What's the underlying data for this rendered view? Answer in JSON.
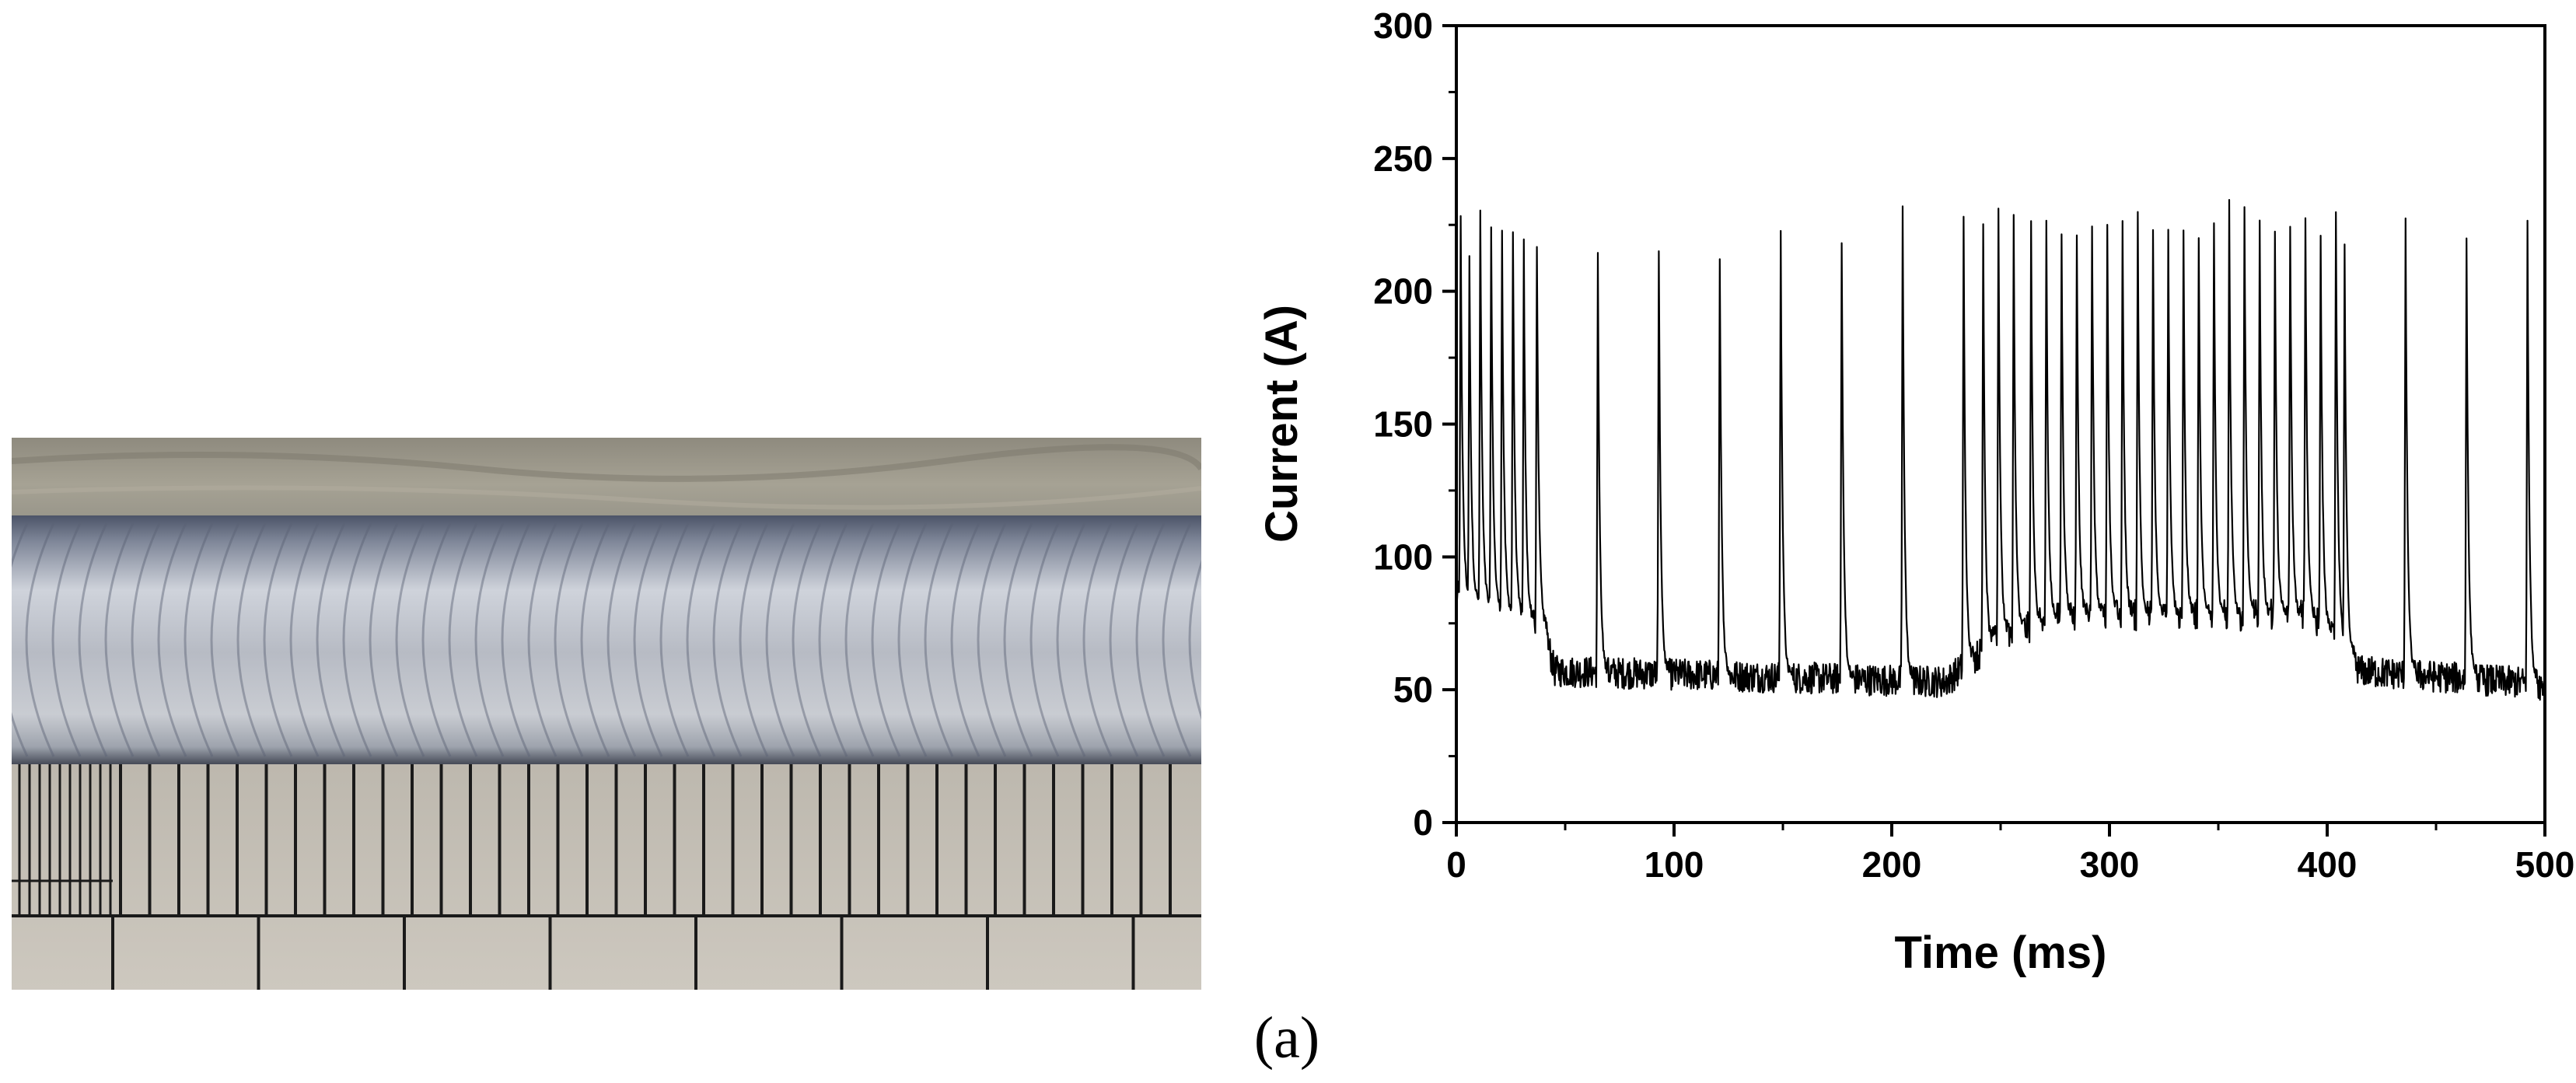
{
  "figure": {
    "panel_label": "(a)",
    "photo_subject": "weld-bead-photo-with-ruler"
  },
  "chart_data": {
    "type": "line",
    "title": "",
    "xlabel": "Time  (ms)",
    "ylabel": "Current  (A)",
    "xlim": [
      0,
      500
    ],
    "ylim": [
      0,
      300
    ],
    "x_ticks": [
      0,
      100,
      200,
      300,
      400,
      500
    ],
    "y_ticks": [
      0,
      50,
      100,
      150,
      200,
      250,
      300
    ],
    "x_tick_labels": [
      "0",
      "100",
      "200",
      "300",
      "400",
      "500"
    ],
    "y_tick_labels": [
      "0",
      "50",
      "100",
      "150",
      "200",
      "250",
      "300"
    ],
    "grid": false,
    "legend": "none",
    "line_color": "#000000",
    "series": [
      {
        "peaks": [
          {
            "t": 2,
            "i": 227
          },
          {
            "t": 6,
            "i": 212
          },
          {
            "t": 11,
            "i": 230
          },
          {
            "t": 16,
            "i": 224
          },
          {
            "t": 21,
            "i": 222
          },
          {
            "t": 26,
            "i": 223
          },
          {
            "t": 31,
            "i": 218
          },
          {
            "t": 37,
            "i": 217
          },
          {
            "t": 65,
            "i": 213
          },
          {
            "t": 93,
            "i": 217
          },
          {
            "t": 121,
            "i": 214
          },
          {
            "t": 149,
            "i": 223
          },
          {
            "t": 177,
            "i": 220
          },
          {
            "t": 205,
            "i": 231
          },
          {
            "t": 233,
            "i": 227
          },
          {
            "t": 242,
            "i": 225
          },
          {
            "t": 249,
            "i": 231
          },
          {
            "t": 256,
            "i": 228
          },
          {
            "t": 264,
            "i": 225
          },
          {
            "t": 271,
            "i": 225
          },
          {
            "t": 278,
            "i": 223
          },
          {
            "t": 285,
            "i": 222
          },
          {
            "t": 292,
            "i": 226
          },
          {
            "t": 299,
            "i": 227
          },
          {
            "t": 306,
            "i": 226
          },
          {
            "t": 313,
            "i": 229
          },
          {
            "t": 320,
            "i": 224
          },
          {
            "t": 327,
            "i": 222
          },
          {
            "t": 334,
            "i": 222
          },
          {
            "t": 341,
            "i": 221
          },
          {
            "t": 348,
            "i": 226
          },
          {
            "t": 355,
            "i": 233
          },
          {
            "t": 362,
            "i": 231
          },
          {
            "t": 369,
            "i": 225
          },
          {
            "t": 376,
            "i": 222
          },
          {
            "t": 383,
            "i": 225
          },
          {
            "t": 390,
            "i": 228
          },
          {
            "t": 397,
            "i": 222
          },
          {
            "t": 404,
            "i": 229
          },
          {
            "t": 408,
            "i": 216
          },
          {
            "t": 436,
            "i": 227
          },
          {
            "t": 464,
            "i": 220
          },
          {
            "t": 492,
            "i": 225
          }
        ],
        "baseline": [
          {
            "t": 0,
            "i": 85
          },
          {
            "t": 40,
            "i": 75
          },
          {
            "t": 45,
            "i": 57
          },
          {
            "t": 225,
            "i": 53
          },
          {
            "t": 232,
            "i": 58
          },
          {
            "t": 250,
            "i": 70
          },
          {
            "t": 280,
            "i": 78
          },
          {
            "t": 390,
            "i": 78
          },
          {
            "t": 405,
            "i": 70
          },
          {
            "t": 415,
            "i": 57
          },
          {
            "t": 500,
            "i": 52
          }
        ]
      }
    ]
  }
}
